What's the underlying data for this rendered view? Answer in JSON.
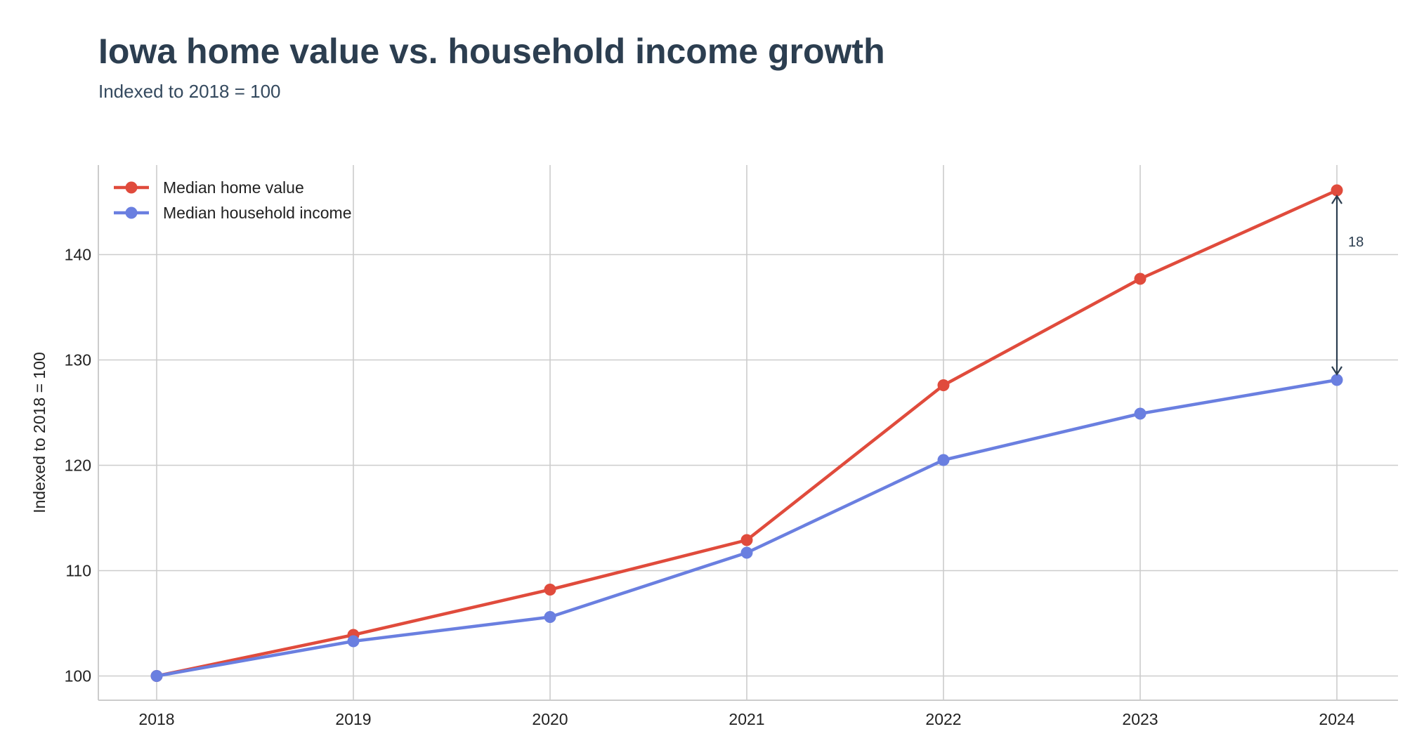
{
  "title": "Iowa home value vs. household income growth",
  "subtitle": "Indexed to 2018 = 100",
  "colors": {
    "home_value": "#e04b3c",
    "household_income": "#6a7fe0",
    "grid": "#cccccc",
    "annotation": "#2c3e50"
  },
  "chart_data": {
    "type": "line",
    "title": "Iowa home value vs. household income growth",
    "subtitle": "Indexed to 2018 = 100",
    "xlabel": "",
    "ylabel": "Indexed to 2018 = 100",
    "x": [
      "2018",
      "2019",
      "2020",
      "2021",
      "2022",
      "2023",
      "2024"
    ],
    "ylim": [
      97.7,
      148.5
    ],
    "yticks": [
      100,
      110,
      120,
      130,
      140
    ],
    "grid": true,
    "legend_position": "top-left",
    "series": [
      {
        "name": "Median home value",
        "color": "#e04b3c",
        "values": [
          100,
          103.9,
          108.2,
          112.9,
          127.6,
          137.7,
          146.1
        ]
      },
      {
        "name": "Median household income",
        "color": "#6a7fe0",
        "values": [
          100,
          103.3,
          105.6,
          111.7,
          120.5,
          124.9,
          128.1
        ]
      }
    ],
    "annotations": [
      {
        "type": "gap-arrow",
        "x": "2024",
        "from": 146.1,
        "to": 128.1,
        "label": "18"
      }
    ]
  }
}
